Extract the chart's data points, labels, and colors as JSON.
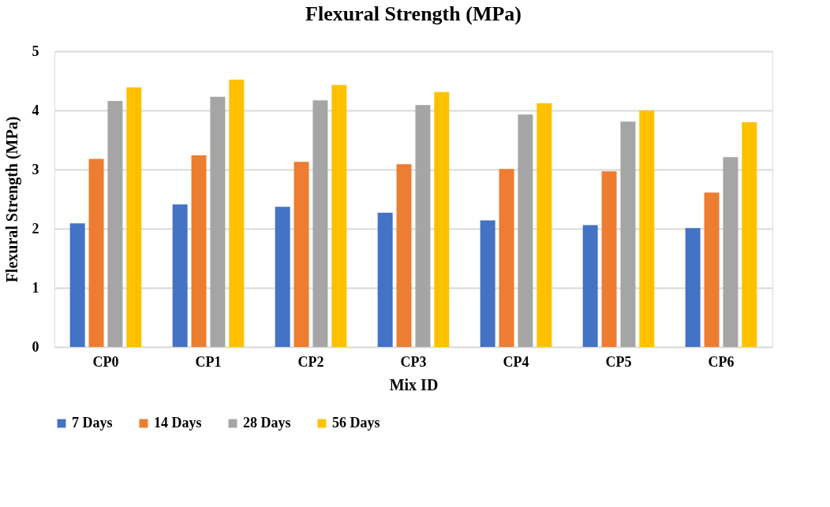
{
  "chart_data": {
    "type": "bar",
    "title": "Flexural Strength (MPa)",
    "xlabel": "Mix ID",
    "ylabel": "Flexural Strength (MPa)",
    "categories": [
      "CP0",
      "CP1",
      "CP2",
      "CP3",
      "CP4",
      "CP5",
      "CP6"
    ],
    "series": [
      {
        "name": "7 Days",
        "color": "#4472c4",
        "values": [
          2.09,
          2.41,
          2.37,
          2.27,
          2.14,
          2.06,
          2.01
        ]
      },
      {
        "name": "14 Days",
        "color": "#ed7d31",
        "values": [
          3.18,
          3.24,
          3.13,
          3.09,
          3.01,
          2.97,
          2.61
        ]
      },
      {
        "name": "28 Days",
        "color": "#a5a5a5",
        "values": [
          4.16,
          4.23,
          4.17,
          4.09,
          3.93,
          3.81,
          3.21
        ]
      },
      {
        "name": "56 Days",
        "color": "#ffc000",
        "values": [
          4.39,
          4.52,
          4.43,
          4.31,
          4.12,
          4.0,
          3.8
        ]
      }
    ],
    "ylim": [
      0,
      5
    ],
    "yticks": [
      0,
      1,
      2,
      3,
      4,
      5
    ],
    "grid": "y",
    "legend": "bottom"
  }
}
